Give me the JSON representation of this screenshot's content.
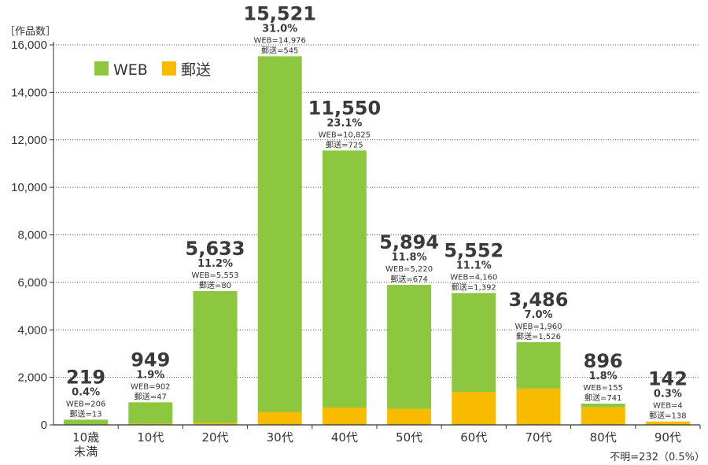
{
  "chart_data": {
    "type": "bar",
    "stacked": true,
    "unit_label": "［作品数］",
    "categories": [
      "10歳\n未満",
      "10代",
      "20代",
      "30代",
      "40代",
      "50代",
      "60代",
      "70代",
      "80代",
      "90代"
    ],
    "series": [
      {
        "name": "WEB",
        "color": "#8dc63f",
        "values": [
          206,
          902,
          5553,
          14976,
          10825,
          5220,
          4160,
          1960,
          155,
          4
        ]
      },
      {
        "name": "郵送",
        "color": "#f9bb00",
        "values": [
          13,
          47,
          80,
          545,
          725,
          674,
          1392,
          1526,
          741,
          138
        ]
      }
    ],
    "totals": [
      "219",
      "949",
      "5,633",
      "15,521",
      "11,550",
      "5,894",
      "5,552",
      "3,486",
      "896",
      "142"
    ],
    "percents": [
      "0.4%",
      "1.9%",
      "11.2%",
      "31.0%",
      "23.1%",
      "11.8%",
      "11.1%",
      "7.0%",
      "1.8%",
      "0.3%"
    ],
    "web_labels": [
      "WEB=206",
      "WEB=902",
      "WEB=5,553",
      "WEB=14,976",
      "WEB=10,825",
      "WEB=5,220",
      "WEB=4,160",
      "WEB=1,960",
      "WEB=155",
      "WEB=4"
    ],
    "mail_labels": [
      "郵送=13",
      "郵送=47",
      "郵送=80",
      "郵送=545",
      "郵送=725",
      "郵送=674",
      "郵送=1,392",
      "郵送=1,526",
      "郵送=741",
      "郵送=138"
    ],
    "ylim": [
      0,
      16000
    ],
    "yticks": [
      0,
      2000,
      4000,
      6000,
      8000,
      10000,
      12000,
      14000,
      16000
    ],
    "ytick_labels": [
      "0",
      "2,000",
      "4,000",
      "6,000",
      "8,000",
      "10,000",
      "12,000",
      "14,000",
      "16,000"
    ],
    "grid": true,
    "legend": "top-left",
    "note": "不明=232（0.5%）"
  }
}
